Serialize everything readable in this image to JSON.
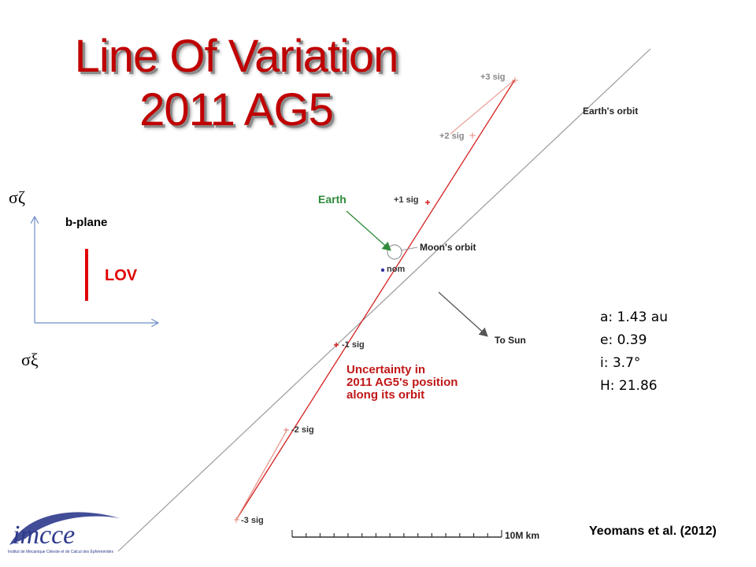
{
  "title": {
    "line1": "Line Of Variation",
    "line2": "2011 AG5"
  },
  "inset": {
    "y_axis_label": "σζ",
    "x_axis_label": "σξ",
    "plane_label": "b-plane",
    "lov_label": "LOV"
  },
  "diagram": {
    "sigma_labels": {
      "p3": "+3 sig",
      "p2": "+2 sig",
      "p1": "+1 sig",
      "nom": "nom",
      "m1": "-1 sig",
      "m2": "-2 sig",
      "m3": "-3 sig"
    },
    "earths_orbit_label": "Earth's orbit",
    "earth_label": "Earth",
    "moons_orbit_label": "Moon's orbit",
    "to_sun_label": "To Sun",
    "uncertainty_label": [
      "Uncertainty in",
      "2011 AG5's position",
      "along its orbit"
    ],
    "scale_label": "10M km",
    "scale_divisions": 15
  },
  "orbital_elements": [
    "a: 1.43 au",
    "e: 0.39",
    "i: 3.7°",
    "H: 21.86"
  ],
  "citation": "Yeomans et al. (2012)",
  "logo": {
    "letters": "imcce",
    "tagline": "Institut de Mécanique Céleste et de Calcul des Éphémérides"
  },
  "colors": {
    "title": "#c00000",
    "lov": "#e00000",
    "earth_arrow": "#2e8b3a",
    "inset_axes": "#6e8fc8",
    "earth_orbit": "#9a9a9a"
  }
}
